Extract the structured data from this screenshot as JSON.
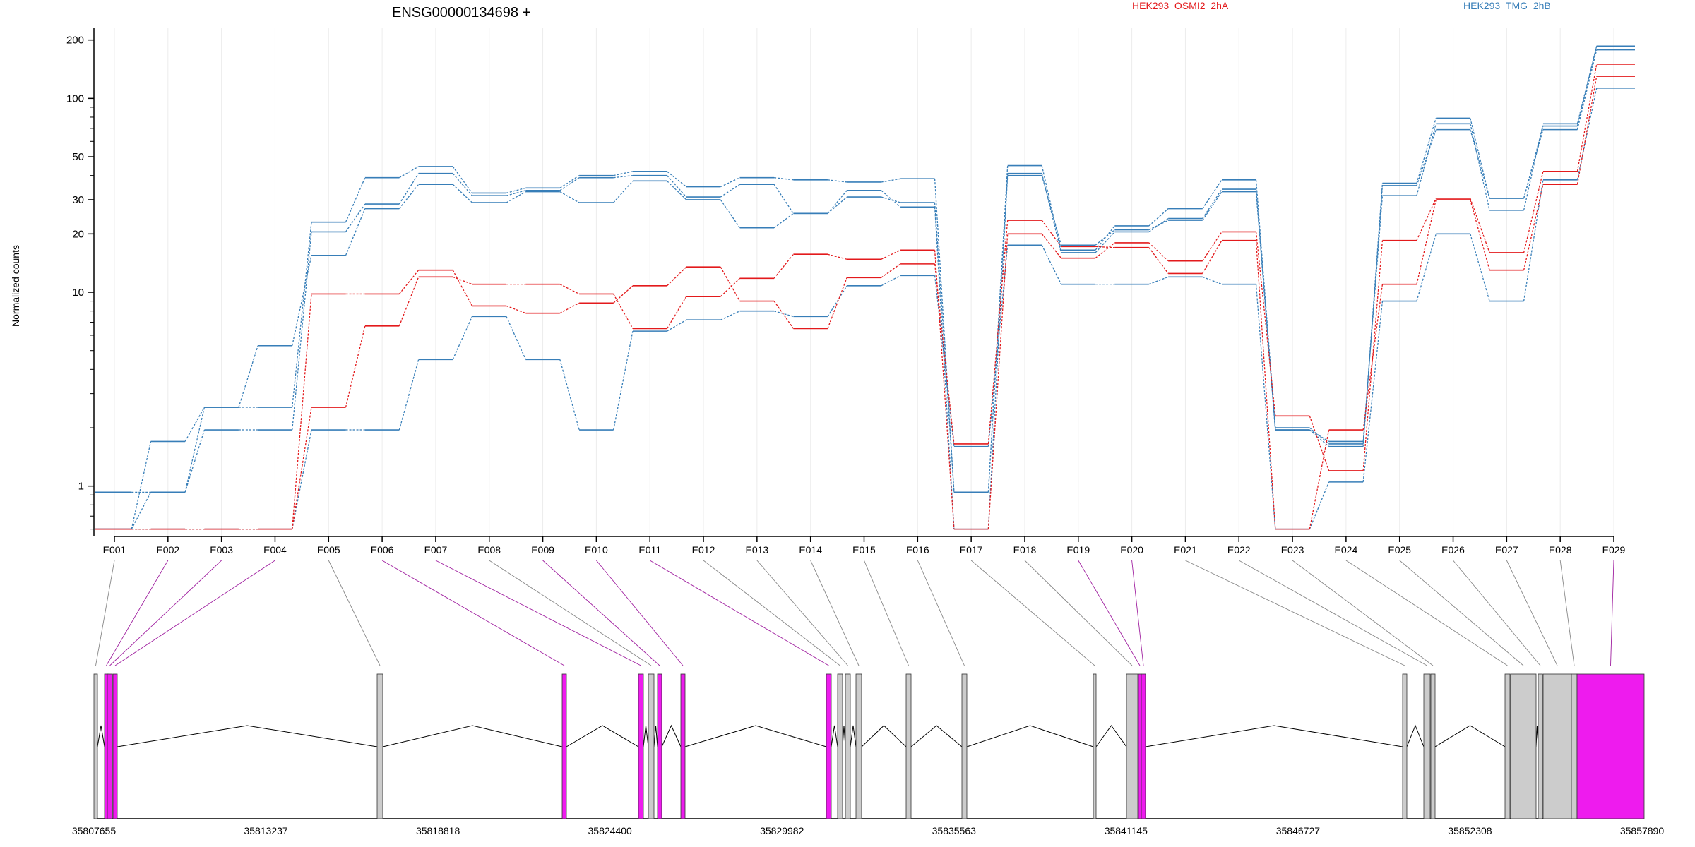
{
  "chart_data": {
    "type": "line",
    "title": "ENSG00000134698 +",
    "ylabel": "Normalized counts",
    "xlabel": "",
    "yscale": "log",
    "ylim": [
      0.55,
      230
    ],
    "yticks": [
      1,
      10,
      20,
      30,
      50,
      100,
      200
    ],
    "ytick_labels": [
      "1",
      "10",
      "20",
      "30",
      "50",
      "100",
      "200"
    ],
    "grid": "vertical",
    "legend_position": "top",
    "colors": {
      "HEK293_OSMI2_2hA": "#e31a1c",
      "HEK293_TMG_2hB": "#377eb8",
      "exon_gray": "#cccccc",
      "exon_highlight": "#ee1bee"
    },
    "categories": [
      "E001",
      "E002",
      "E003",
      "E004",
      "E005",
      "E006",
      "E007",
      "E008",
      "E009",
      "E010",
      "E011",
      "E012",
      "E013",
      "E014",
      "E015",
      "E016",
      "E017",
      "E018",
      "E019",
      "E020",
      "E021",
      "E022",
      "E023",
      "E024",
      "E025",
      "E026",
      "E027",
      "E028",
      "E029"
    ],
    "groups": [
      "HEK293_OSMI2_2hA",
      "HEK293_TMG_2hB"
    ],
    "series": [
      {
        "group": "HEK293_TMG_2hB",
        "values": [
          0.93,
          0.93,
          1.95,
          1.95,
          20.5,
          28.5,
          41,
          31.5,
          33.5,
          39,
          40,
          31,
          36,
          25.5,
          31,
          29,
          0.93,
          41,
          16,
          20.5,
          24,
          34,
          1.95,
          1.6,
          35.5,
          69,
          30.5,
          69,
          178
        ]
      },
      {
        "group": "HEK293_TMG_2hB",
        "values": [
          0.6,
          0.93,
          2.55,
          2.55,
          23,
          39,
          44.5,
          32.5,
          34.5,
          40,
          42,
          35,
          39,
          38,
          37,
          38.5,
          0.93,
          45,
          16.5,
          22,
          27,
          38,
          2.0,
          1.65,
          36.5,
          79,
          30.5,
          72,
          186
        ]
      },
      {
        "group": "HEK293_TMG_2hB",
        "values": [
          0.6,
          1.7,
          2.55,
          5.3,
          15.5,
          27,
          36,
          29,
          33,
          29,
          37.5,
          30,
          21.5,
          25.5,
          33.5,
          27.5,
          0.6,
          40,
          17.5,
          21,
          23.5,
          33,
          1.95,
          1.7,
          31.5,
          74,
          26.5,
          74,
          186
        ]
      },
      {
        "group": "HEK293_TMG_2hB",
        "values": [
          0.6,
          0.6,
          0.6,
          0.6,
          1.95,
          1.95,
          4.5,
          7.5,
          4.5,
          1.95,
          6.3,
          7.2,
          8,
          7.5,
          10.8,
          12.2,
          1.6,
          17.5,
          11,
          11,
          12,
          11,
          0.6,
          1.05,
          9,
          20,
          9,
          38,
          113
        ]
      },
      {
        "group": "HEK293_OSMI2_2hA",
        "values": [
          0.6,
          0.6,
          0.6,
          0.6,
          2.55,
          6.7,
          12,
          11,
          11,
          9.8,
          6.5,
          9.5,
          11.8,
          15.7,
          14.8,
          16.5,
          0.6,
          20,
          15,
          18,
          14.5,
          20.5,
          2.3,
          1.2,
          18.5,
          30.5,
          16,
          42,
          150
        ]
      },
      {
        "group": "HEK293_OSMI2_2hA",
        "values": [
          0.6,
          0.6,
          0.6,
          0.6,
          9.8,
          9.8,
          13,
          8.5,
          7.8,
          8.8,
          10.8,
          13.5,
          9,
          6.5,
          11.9,
          14,
          1.65,
          23.5,
          17.2,
          17,
          12.5,
          18.5,
          0.6,
          1.95,
          11,
          30,
          13,
          36,
          130
        ]
      }
    ],
    "gene_model": {
      "coordinate_labels": [
        "35807655",
        "35813237",
        "35818818",
        "35824400",
        "35829982",
        "35835563",
        "35841145",
        "35846727",
        "35852308",
        "35857890"
      ],
      "highlighted_exons": [
        "E002",
        "E003",
        "E004",
        "E006",
        "E007",
        "E009",
        "E010",
        "E011",
        "E019",
        "E020",
        "E029"
      ]
    }
  }
}
